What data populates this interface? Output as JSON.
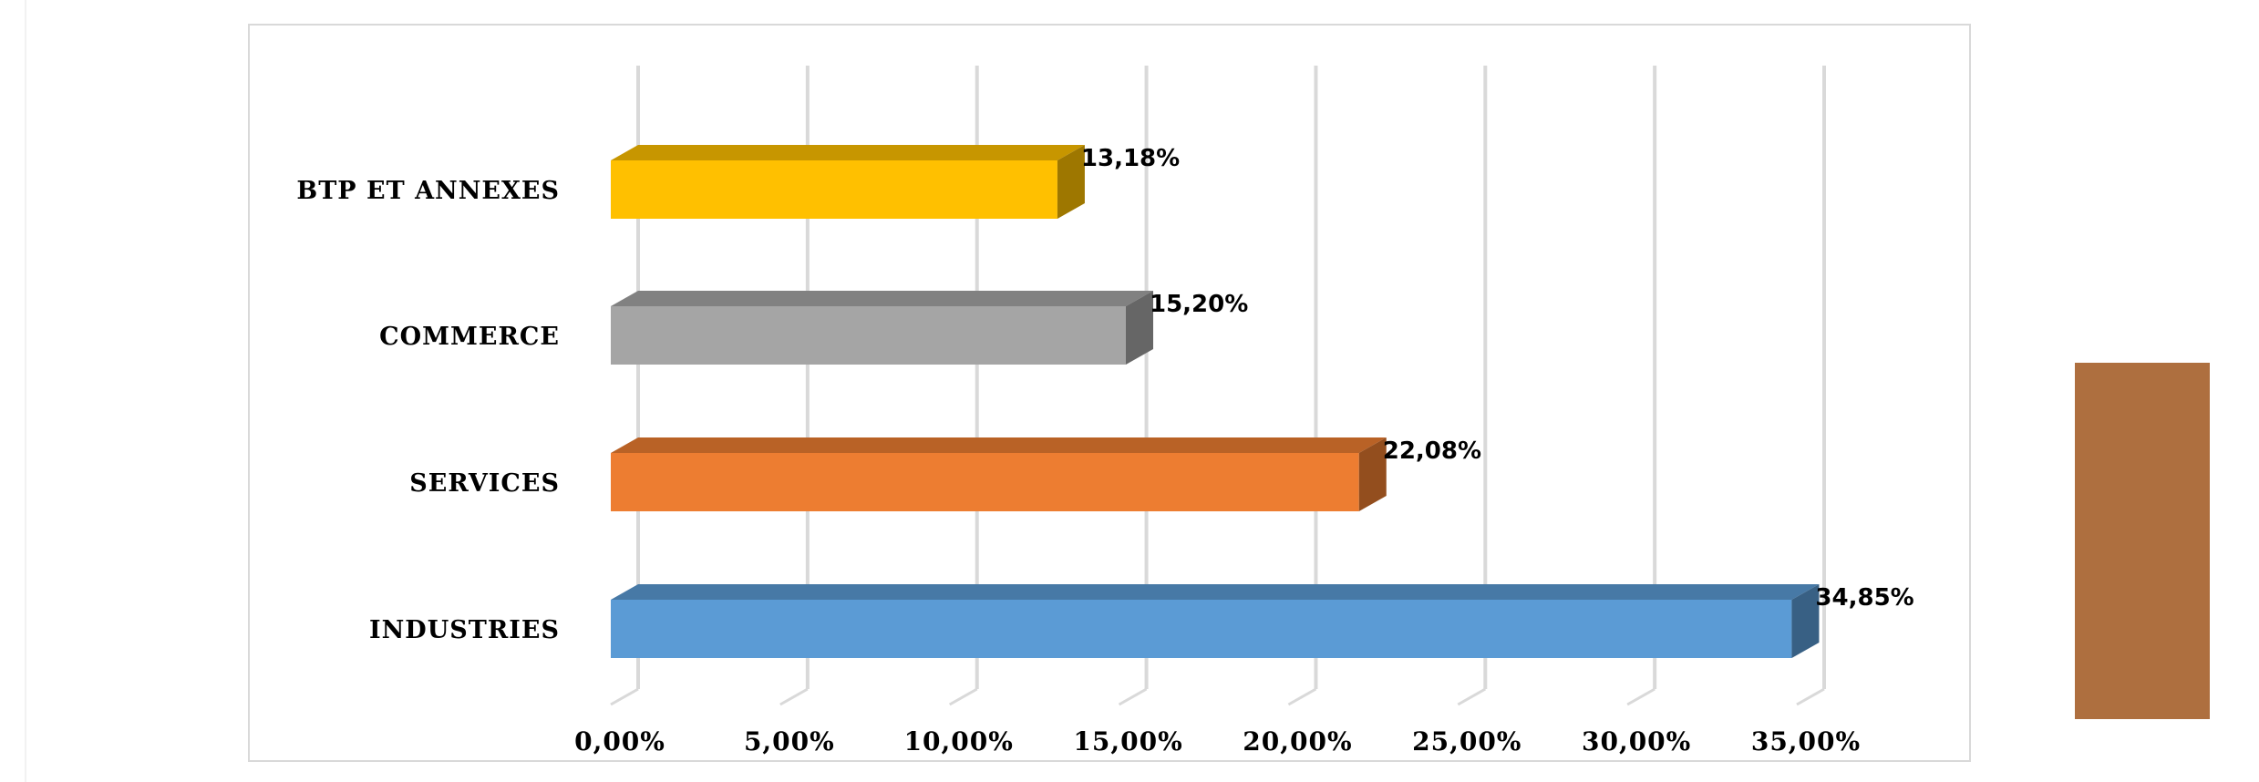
{
  "chart_data": {
    "type": "bar",
    "orientation": "horizontal",
    "style": "3d",
    "categories": [
      "INDUSTRIES",
      "SERVICES",
      "COMMERCE",
      "BTP ET ANNEXES"
    ],
    "values": [
      34.85,
      22.08,
      15.2,
      13.18
    ],
    "data_labels": [
      "34,85%",
      "22,08%",
      "15,20%",
      "13,18%"
    ],
    "colors": [
      "#5b9bd5",
      "#ed7d31",
      "#a5a5a5",
      "#ffc000"
    ],
    "x_ticks": [
      "0,00%",
      "5,00%",
      "10,00%",
      "15,00%",
      "20,00%",
      "25,00%",
      "30,00%",
      "35,00%"
    ],
    "xlim": [
      0,
      35
    ],
    "title": "",
    "xlabel": "",
    "ylabel": "",
    "grid": true,
    "legend": "none"
  },
  "side_shape": {
    "color": "#ae6f3f"
  }
}
